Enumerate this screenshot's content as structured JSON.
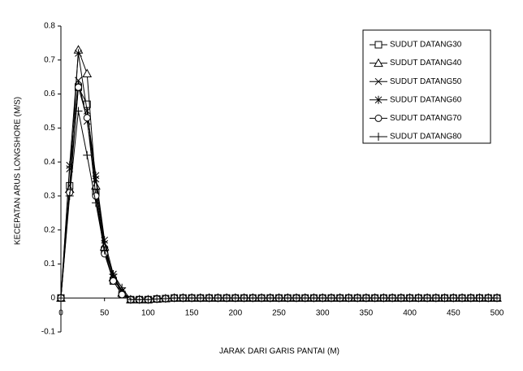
{
  "chart_data": {
    "type": "line",
    "xlabel": "JARAK DARI GARIS PANTAI (M)",
    "ylabel": "KECEPATAN ARUS LONGSHORE (M/S)",
    "x": [
      0,
      10,
      20,
      30,
      40,
      50,
      60,
      70,
      80,
      90,
      100,
      110,
      120,
      130,
      140,
      150,
      160,
      170,
      180,
      190,
      200,
      210,
      220,
      230,
      240,
      250,
      260,
      270,
      280,
      290,
      300,
      310,
      320,
      330,
      340,
      350,
      360,
      370,
      380,
      390,
      400,
      410,
      420,
      430,
      440,
      450,
      460,
      470,
      480,
      490,
      500
    ],
    "xlim": [
      0,
      500
    ],
    "xticks": [
      0,
      50,
      100,
      150,
      200,
      250,
      300,
      350,
      400,
      450,
      500
    ],
    "ylim": [
      -0.1,
      0.8
    ],
    "yticks": [
      0.8,
      0.7,
      0.6,
      0.5,
      0.4,
      0.3,
      0.2,
      0.1,
      0,
      -0.1
    ],
    "legend": "upper right",
    "series": [
      {
        "name": "SUDUT DATANG30",
        "color": "#000000",
        "marker": "square",
        "values": [
          0,
          0.33,
          0.62,
          0.57,
          0.31,
          0.14,
          0.05,
          0.01,
          -0.005,
          -0.005,
          -0.005,
          -0.003,
          -0.002,
          0,
          0,
          0,
          0,
          0,
          0,
          0,
          0,
          0,
          0,
          0,
          0,
          0,
          0,
          0,
          0,
          0,
          0,
          0,
          0,
          0,
          0,
          0,
          0,
          0,
          0,
          0,
          0,
          0,
          0,
          0,
          0,
          0,
          0,
          0,
          0,
          0,
          0
        ]
      },
      {
        "name": "SUDUT DATANG40",
        "color": "#000000",
        "marker": "triangle",
        "values": [
          0,
          0.32,
          0.73,
          0.66,
          0.33,
          0.15,
          0.06,
          0.015,
          -0.005,
          -0.005,
          -0.005,
          -0.003,
          -0.002,
          0,
          0,
          0,
          0,
          0,
          0,
          0,
          0,
          0,
          0,
          0,
          0,
          0,
          0,
          0,
          0,
          0,
          0,
          0,
          0,
          0,
          0,
          0,
          0,
          0,
          0,
          0,
          0,
          0,
          0,
          0,
          0,
          0,
          0,
          0,
          0,
          0,
          0
        ]
      },
      {
        "name": "SUDUT DATANG50",
        "color": "#000000",
        "marker": "x",
        "values": [
          0,
          0.38,
          0.64,
          0.52,
          0.35,
          0.16,
          0.06,
          0.02,
          -0.005,
          -0.005,
          -0.005,
          -0.003,
          -0.002,
          0,
          0,
          0,
          0,
          0,
          0,
          0,
          0,
          0,
          0,
          0,
          0,
          0,
          0,
          0,
          0,
          0,
          0,
          0,
          0,
          0,
          0,
          0,
          0,
          0,
          0,
          0,
          0,
          0,
          0,
          0,
          0,
          0,
          0,
          0,
          0,
          0,
          0
        ]
      },
      {
        "name": "SUDUT DATANG60",
        "color": "#000000",
        "marker": "star",
        "values": [
          0,
          0.39,
          0.72,
          0.55,
          0.36,
          0.17,
          0.07,
          0.02,
          -0.005,
          -0.005,
          -0.005,
          -0.003,
          -0.002,
          0,
          0,
          0,
          0,
          0,
          0,
          0,
          0,
          0,
          0,
          0,
          0,
          0,
          0,
          0,
          0,
          0,
          0,
          0,
          0,
          0,
          0,
          0,
          0,
          0,
          0,
          0,
          0,
          0,
          0,
          0,
          0,
          0,
          0,
          0,
          0,
          0,
          0
        ]
      },
      {
        "name": "SUDUT DATANG70",
        "color": "#000000",
        "marker": "circle",
        "values": [
          0,
          0.31,
          0.62,
          0.53,
          0.3,
          0.13,
          0.05,
          0.01,
          -0.005,
          -0.005,
          -0.005,
          -0.003,
          -0.002,
          0,
          0,
          0,
          0,
          0,
          0,
          0,
          0,
          0,
          0,
          0,
          0,
          0,
          0,
          0,
          0,
          0,
          0,
          0,
          0,
          0,
          0,
          0,
          0,
          0,
          0,
          0,
          0,
          0,
          0,
          0,
          0,
          0,
          0,
          0,
          0,
          0,
          0
        ]
      },
      {
        "name": "SUDUT DATANG80",
        "color": "#000000",
        "marker": "plus",
        "values": [
          0,
          0.3,
          0.55,
          0.42,
          0.28,
          0.14,
          0.07,
          0.03,
          -0.005,
          -0.005,
          -0.005,
          -0.003,
          -0.002,
          0,
          0,
          0,
          0,
          0,
          0,
          0,
          0,
          0,
          0,
          0,
          0,
          0,
          0,
          0,
          0,
          0,
          0,
          0,
          0,
          0,
          0,
          0,
          0,
          0,
          0,
          0,
          0,
          0,
          0,
          0,
          0,
          0,
          0,
          0,
          0,
          0,
          0
        ]
      }
    ]
  }
}
